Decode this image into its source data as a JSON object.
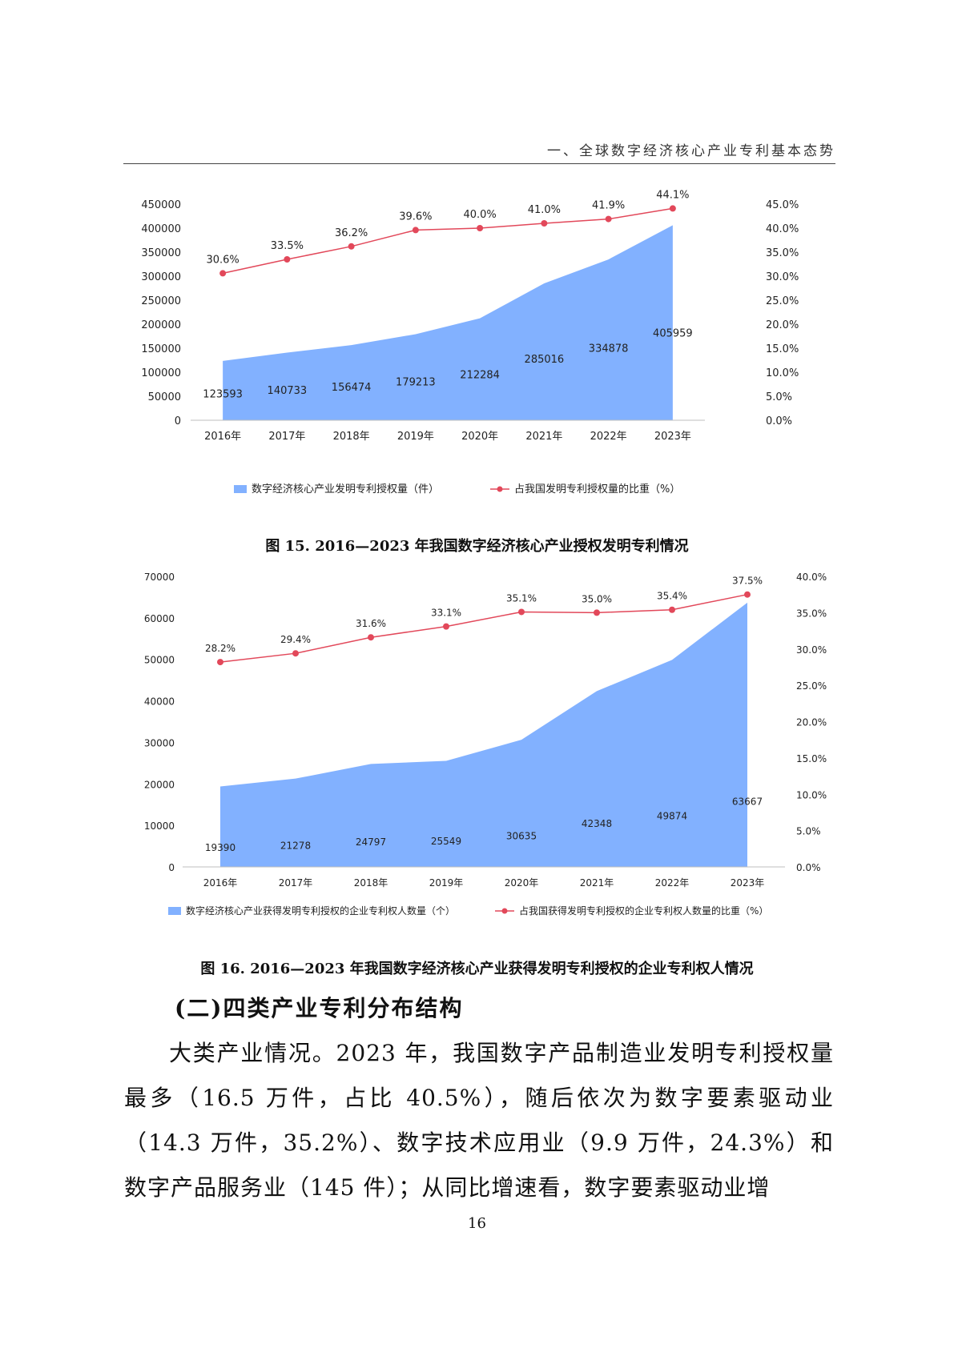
{
  "header": {
    "title": "一、全球数字经济核心产业专利基本态势"
  },
  "chart_data": [
    {
      "type": "area",
      "categories": [
        "2016年",
        "2017年",
        "2018年",
        "2019年",
        "2020年",
        "2021年",
        "2022年",
        "2023年"
      ],
      "series": [
        {
          "name": "数字经济核心产业发明专利授权量（件）",
          "type": "area",
          "axis": "left",
          "values": [
            123593,
            140733,
            156474,
            179213,
            212284,
            285016,
            334878,
            405959
          ],
          "labels": [
            "123593",
            "140733",
            "156474",
            "179213",
            "212284",
            "285016",
            "334878",
            "405959"
          ]
        },
        {
          "name": "占我国发明专利授权量的比重（%）",
          "type": "line",
          "axis": "right",
          "values": [
            30.6,
            33.5,
            36.2,
            39.6,
            40.0,
            41.0,
            41.9,
            44.1
          ],
          "labels": [
            "30.6%",
            "33.5%",
            "36.2%",
            "39.6%",
            "40.0%",
            "41.0%",
            "41.9%",
            "44.1%"
          ]
        }
      ],
      "ylim": [
        0,
        450000
      ],
      "y_ticks": [
        "0",
        "50000",
        "100000",
        "150000",
        "200000",
        "250000",
        "300000",
        "350000",
        "400000",
        "450000"
      ],
      "y2lim": [
        0,
        45
      ],
      "y2_ticks": [
        "0.0%",
        "5.0%",
        "10.0%",
        "15.0%",
        "20.0%",
        "25.0%",
        "30.0%",
        "35.0%",
        "40.0%",
        "45.0%"
      ],
      "legend": "bottom",
      "colors": {
        "area": "#82b1ff",
        "line": "#e2485a"
      }
    },
    {
      "type": "area",
      "categories": [
        "2016年",
        "2017年",
        "2018年",
        "2019年",
        "2020年",
        "2021年",
        "2022年",
        "2023年"
      ],
      "series": [
        {
          "name": "数字经济核心产业获得发明专利授权的企业专利权人数量（个）",
          "type": "area",
          "axis": "left",
          "values": [
            19390,
            21278,
            24797,
            25549,
            30635,
            42348,
            49874,
            63667
          ],
          "labels": [
            "19390",
            "21278",
            "24797",
            "25549",
            "30635",
            "42348",
            "49874",
            "63667"
          ]
        },
        {
          "name": "占我国获得发明专利授权的企业专利权人数量的比重（%）",
          "type": "line",
          "axis": "right",
          "values": [
            28.2,
            29.4,
            31.6,
            33.1,
            35.1,
            35.0,
            35.4,
            37.5
          ],
          "labels": [
            "28.2%",
            "29.4%",
            "31.6%",
            "33.1%",
            "35.1%",
            "35.0%",
            "35.4%",
            "37.5%"
          ]
        }
      ],
      "ylim": [
        0,
        70000
      ],
      "y_ticks": [
        "0",
        "10000",
        "20000",
        "30000",
        "40000",
        "50000",
        "60000",
        "70000"
      ],
      "y2lim": [
        0,
        40
      ],
      "y2_ticks": [
        "0.0%",
        "5.0%",
        "10.0%",
        "15.0%",
        "20.0%",
        "25.0%",
        "30.0%",
        "35.0%",
        "40.0%"
      ],
      "legend": "bottom",
      "colors": {
        "area": "#82b1ff",
        "line": "#e2485a"
      }
    }
  ],
  "captions": {
    "fig15": "图 15. 2016—2023 年我国数字经济核心产业授权发明专利情况",
    "fig16": "图 16. 2016—2023 年我国数字经济核心产业获得发明专利授权的企业专利权人情况"
  },
  "section": {
    "heading": "(二)四类产业专利分布结构"
  },
  "body": {
    "paragraph": "大类产业情况。2023 年，我国数字产品制造业发明专利授权量最多（16.5 万件，占比 40.5%），随后依次为数字要素驱动业（14.3 万件，35.2%）、数字技术应用业（9.9 万件，24.3%）和数字产品服务业（145 件）；从同比增速看，数字要素驱动业增"
  },
  "page_number": "16"
}
